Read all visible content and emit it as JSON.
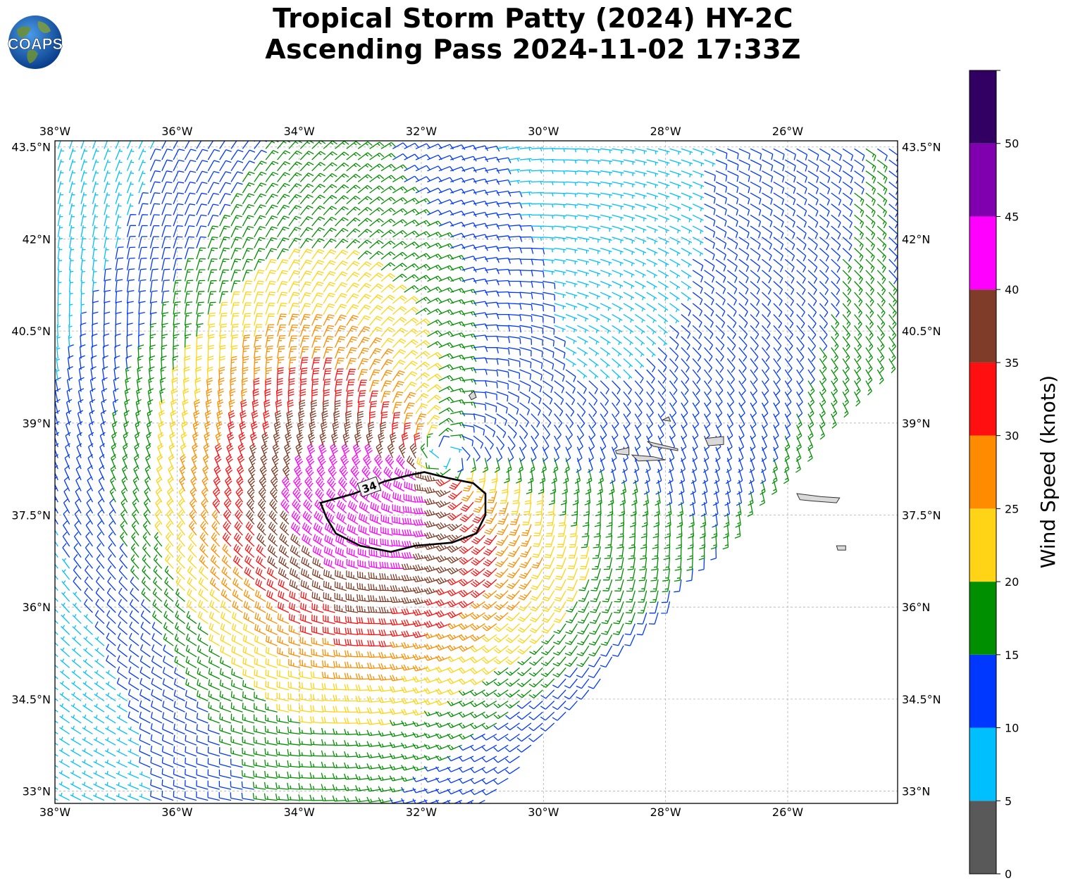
{
  "title": {
    "line1": "Tropical Storm Patty (2024) HY-2C",
    "line2": "Ascending Pass 2024-11-02 17:33Z"
  },
  "logo": {
    "icon": "coaps-globe-logo",
    "text": "COAPS"
  },
  "map": {
    "lon_range": [
      -38.0,
      -24.2
    ],
    "lat_range": [
      32.8,
      43.6
    ],
    "lon_ticks": [
      {
        "value": -38,
        "label": "38°W"
      },
      {
        "value": -36,
        "label": "36°W"
      },
      {
        "value": -34,
        "label": "34°W"
      },
      {
        "value": -32,
        "label": "32°W"
      },
      {
        "value": -30,
        "label": "30°W"
      },
      {
        "value": -28,
        "label": "28°W"
      },
      {
        "value": -26,
        "label": "26°W"
      }
    ],
    "lat_ticks": [
      {
        "value": 43.5,
        "label": "43.5°N"
      },
      {
        "value": 42,
        "label": "42°N"
      },
      {
        "value": 40.5,
        "label": "40.5°N"
      },
      {
        "value": 39,
        "label": "39°N"
      },
      {
        "value": 37.5,
        "label": "37.5°N"
      },
      {
        "value": 36,
        "label": "36°N"
      },
      {
        "value": 34.5,
        "label": "34.5°N"
      },
      {
        "value": 33,
        "label": "33°N"
      }
    ],
    "grid": true,
    "storm_center": {
      "lon": -31.6,
      "lat": 38.5
    },
    "contour_label": "34",
    "contour_34kt": [
      [
        -33.65,
        37.7
      ],
      [
        -33.1,
        37.85
      ],
      [
        -32.6,
        38.05
      ],
      [
        -32.2,
        38.15
      ],
      [
        -31.95,
        38.2
      ],
      [
        -31.55,
        38.1
      ],
      [
        -31.15,
        38.02
      ],
      [
        -30.95,
        37.85
      ],
      [
        -30.95,
        37.5
      ],
      [
        -31.1,
        37.2
      ],
      [
        -31.5,
        37.05
      ],
      [
        -32.1,
        37.0
      ],
      [
        -32.5,
        36.9
      ],
      [
        -33.0,
        37.0
      ],
      [
        -33.4,
        37.2
      ],
      [
        -33.55,
        37.45
      ]
    ],
    "islands": [
      {
        "name": "Flores",
        "points": [
          [
            -31.22,
            39.45
          ],
          [
            -31.14,
            39.52
          ],
          [
            -31.1,
            39.42
          ],
          [
            -31.18,
            39.38
          ]
        ]
      },
      {
        "name": "Faial",
        "points": [
          [
            -28.82,
            38.55
          ],
          [
            -28.6,
            38.6
          ],
          [
            -28.6,
            38.48
          ],
          [
            -28.8,
            38.5
          ]
        ]
      },
      {
        "name": "Pico",
        "points": [
          [
            -28.55,
            38.48
          ],
          [
            -28.2,
            38.45
          ],
          [
            -28.0,
            38.4
          ],
          [
            -28.45,
            38.38
          ]
        ]
      },
      {
        "name": "Sao Jorge",
        "points": [
          [
            -28.3,
            38.7
          ],
          [
            -27.8,
            38.58
          ],
          [
            -27.8,
            38.55
          ],
          [
            -28.2,
            38.62
          ]
        ]
      },
      {
        "name": "Graciosa",
        "points": [
          [
            -28.05,
            39.05
          ],
          [
            -27.95,
            39.1
          ],
          [
            -27.92,
            39.03
          ]
        ]
      },
      {
        "name": "Terceira",
        "points": [
          [
            -27.35,
            38.75
          ],
          [
            -27.05,
            38.78
          ],
          [
            -27.05,
            38.65
          ],
          [
            -27.3,
            38.63
          ]
        ]
      },
      {
        "name": "Sao Miguel",
        "points": [
          [
            -25.85,
            37.85
          ],
          [
            -25.45,
            37.8
          ],
          [
            -25.15,
            37.78
          ],
          [
            -25.2,
            37.7
          ],
          [
            -25.6,
            37.73
          ],
          [
            -25.8,
            37.75
          ]
        ]
      },
      {
        "name": "Santa Maria",
        "points": [
          [
            -25.2,
            37.0
          ],
          [
            -25.05,
            37.0
          ],
          [
            -25.05,
            36.93
          ],
          [
            -25.18,
            36.93
          ]
        ]
      }
    ]
  },
  "colorbar": {
    "label": "Wind Speed (knots)",
    "bins": [
      {
        "min": 0,
        "max": 5,
        "color": "#595959"
      },
      {
        "min": 5,
        "max": 10,
        "color": "#00bfff"
      },
      {
        "min": 10,
        "max": 15,
        "color": "#0038ff"
      },
      {
        "min": 15,
        "max": 20,
        "color": "#008f00"
      },
      {
        "min": 20,
        "max": 25,
        "color": "#ffd416"
      },
      {
        "min": 25,
        "max": 30,
        "color": "#ff8c00"
      },
      {
        "min": 30,
        "max": 35,
        "color": "#ff0f0f"
      },
      {
        "min": 35,
        "max": 40,
        "color": "#7f3c28"
      },
      {
        "min": 40,
        "max": 45,
        "color": "#ff00ff"
      },
      {
        "min": 45,
        "max": 50,
        "color": "#8000b0"
      },
      {
        "min": 50,
        "max": 55,
        "color": "#320062"
      }
    ],
    "tick_labels": [
      "0",
      "5",
      "10",
      "15",
      "20",
      "25",
      "30",
      "35",
      "40",
      "45",
      "50"
    ]
  }
}
